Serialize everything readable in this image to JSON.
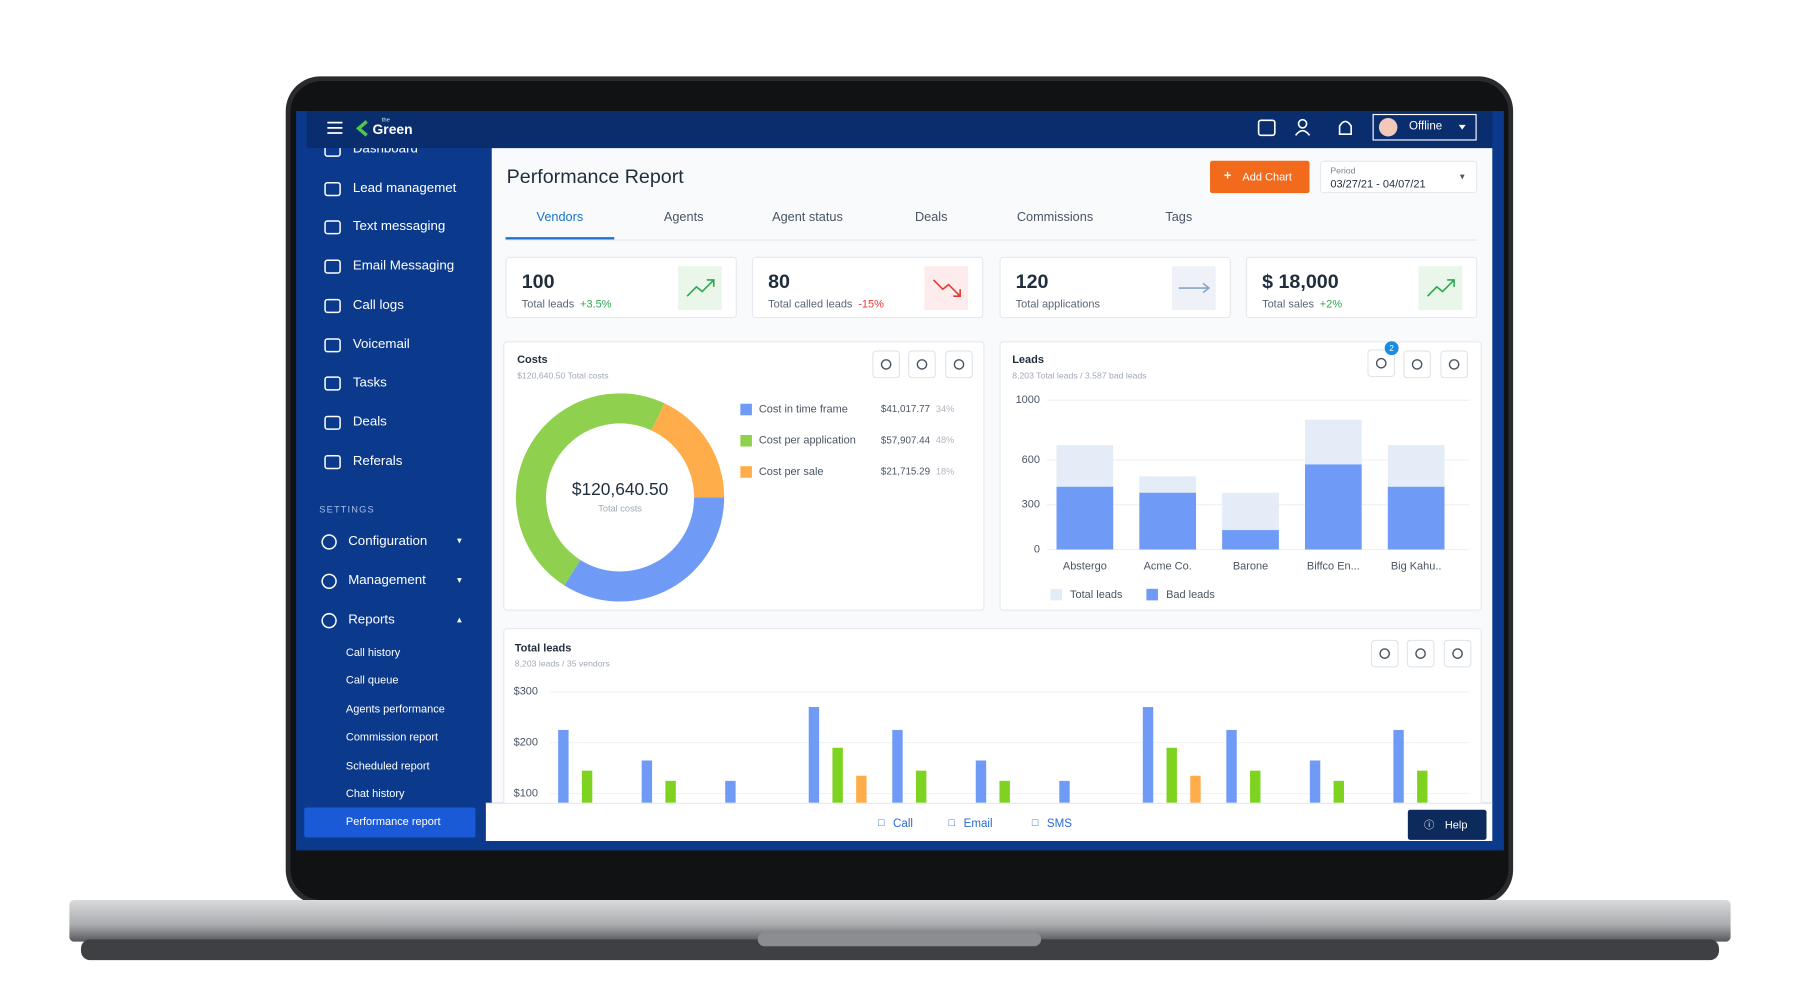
{
  "header": {
    "brand_prefix": "the",
    "brand": "Green",
    "status": "Offline"
  },
  "sidebar": {
    "items": [
      "Dashboard",
      "Lead managemet",
      "Text messaging",
      "Email Messaging",
      "Call logs",
      "Voicemail",
      "Tasks",
      "Deals",
      "Referals"
    ],
    "settings_label": "SETTINGS",
    "settings_items": [
      "Configuration",
      "Management",
      "Reports"
    ],
    "expanded": 2,
    "report_items": [
      "Call history",
      "Call queue",
      "Agents performance",
      "Commission report",
      "Scheduled report",
      "Chat history",
      "Performance report"
    ],
    "active_report": 6
  },
  "page": {
    "title": "Performance Report",
    "add_chart": "Add Chart",
    "period_label": "Period",
    "period": "03/27/21 - 04/07/21",
    "tabs": [
      "Vendors",
      "Agents",
      "Agent status",
      "Deals",
      "Commissions",
      "Tags"
    ],
    "active_tab": 0
  },
  "kpis": [
    {
      "value": "100",
      "label": "Total leads",
      "change": "+3.5%",
      "trend": "up"
    },
    {
      "value": "80",
      "label": "Total called leads",
      "change": "-15%",
      "trend": "down"
    },
    {
      "value": "120",
      "label": "Total applications",
      "trend": "flat"
    },
    {
      "value": "$ 18,000",
      "label": "Total sales",
      "change": "+2%",
      "trend": "up"
    }
  ],
  "costs": {
    "title": "Costs",
    "subtitle": "$120,640.50 Total costs",
    "center_value": "$120,640.50",
    "center_label": "Total costs",
    "chart_data": {
      "type": "donut",
      "categories": [
        "Cost in time frame",
        "Cost per application",
        "Cost per sale"
      ],
      "values": [
        34,
        48,
        18
      ],
      "value_labels": [
        "34%",
        "48%",
        "18%"
      ],
      "amounts": [
        "$41,017.77",
        "$57,907.44",
        "$21,715.29"
      ],
      "colors": [
        "#6f9bf7",
        "#8fd14f",
        "#ffad4a"
      ]
    }
  },
  "leads": {
    "title": "Leads",
    "subtitle": "8,203 Total leads / 3,587 bad leads",
    "filter_count": "2",
    "chart_data": {
      "type": "bar",
      "overlap": true,
      "categories": [
        "Abstergo",
        "Acme Co.",
        "Barone",
        "Biffco En...",
        "Big Kahu.."
      ],
      "series": [
        {
          "name": "Total leads",
          "color": "#e3ecf7",
          "values": [
            700,
            490,
            380,
            870,
            700
          ]
        },
        {
          "name": "Bad leads",
          "color": "#6f9bf7",
          "values": [
            420,
            380,
            130,
            570,
            420
          ]
        }
      ],
      "ylim": [
        0,
        1000
      ],
      "yticks": [
        0,
        300,
        600,
        1000
      ],
      "grid": true
    }
  },
  "total_leads": {
    "title": "Total leads",
    "subtitle": "8,203 leads / 35 vendors",
    "chart_data": {
      "type": "bar",
      "categories": [
        null,
        null,
        null,
        null,
        null,
        null,
        null,
        null,
        null,
        null,
        null
      ],
      "series": [
        {
          "color": "#6f9bf7",
          "values": [
            225,
            165,
            125,
            270,
            225,
            165,
            125,
            270,
            225,
            165,
            225
          ]
        },
        {
          "color": "#7ed321",
          "values": [
            145,
            125,
            null,
            190,
            145,
            125,
            null,
            190,
            145,
            125,
            145
          ]
        },
        {
          "color": "#ffad4a",
          "values": [
            null,
            null,
            null,
            135,
            null,
            null,
            null,
            135,
            null,
            null,
            null
          ]
        }
      ],
      "ylim": [
        0,
        300
      ],
      "yticks": [
        {
          "value": 100,
          "label": "$100"
        },
        {
          "value": 200,
          "label": "$200"
        },
        {
          "value": 300,
          "label": "$300"
        }
      ],
      "grid": true
    }
  },
  "footer": {
    "actions": [
      "Call",
      "Email",
      "SMS"
    ],
    "help": "Help"
  }
}
